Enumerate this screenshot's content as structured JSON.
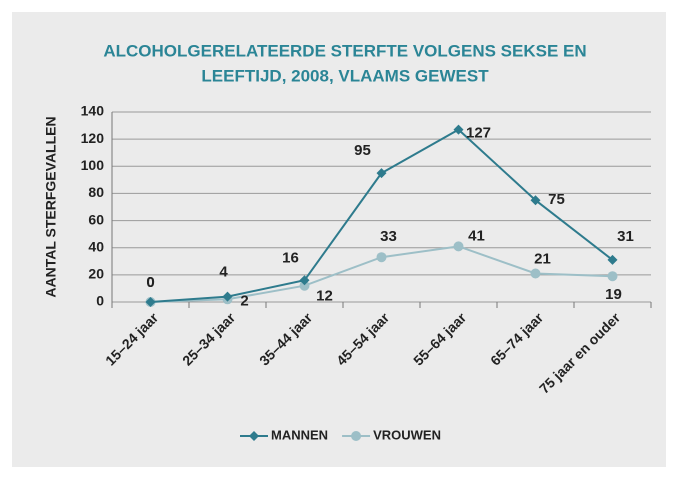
{
  "chart_data": {
    "type": "line",
    "title": [
      "ALCOHOLGERELATEERDE STERFTE VOLGENS SEKSE EN",
      "LEEFTIJD, 2008, VLAAMS GEWEST"
    ],
    "y_label": "AANTAL STERFGEVALLEN",
    "categories": [
      "15–24 jaar",
      "25–34 jaar",
      "35–44 jaar",
      "45–54 jaar",
      "55–64 jaar",
      "65–74 jaar",
      "75 jaar en ouder"
    ],
    "series": [
      {
        "name": "MANNEN",
        "color": "#2e7b8d",
        "marker": "diamond",
        "values": [
          0,
          4,
          16,
          95,
          127,
          75,
          31
        ]
      },
      {
        "name": "VROUWEN",
        "color": "#9dbfc7",
        "marker": "circle",
        "values": [
          0,
          2,
          12,
          33,
          41,
          21,
          19
        ]
      }
    ],
    "ylim": [
      0,
      140
    ],
    "yticks": [
      0,
      20,
      40,
      60,
      80,
      100,
      120,
      140
    ],
    "grid": true,
    "legend": "bottom"
  }
}
